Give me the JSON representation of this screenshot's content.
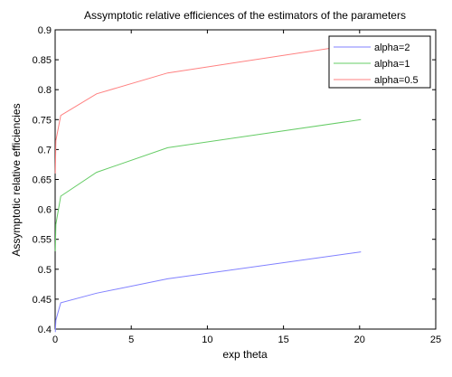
{
  "chart_data": {
    "type": "line",
    "title": "Assymptotic relative efficiences of the estimators of the parameters",
    "xlabel": "exp theta",
    "ylabel": "Assymptotic relative efficiencies",
    "xlim": [
      0,
      25
    ],
    "ylim": [
      0.4,
      0.9
    ],
    "xticks": [
      0,
      5,
      10,
      15,
      20,
      25
    ],
    "yticks": [
      0.4,
      0.45,
      0.5,
      0.55,
      0.6,
      0.65,
      0.7,
      0.75,
      0.8,
      0.85,
      0.9
    ],
    "xtick_labels": [
      "0",
      "5",
      "10",
      "15",
      "20",
      "25"
    ],
    "ytick_labels": [
      "0.4",
      "0.45",
      "0.5",
      "0.55",
      "0.6",
      "0.65",
      "0.7",
      "0.75",
      "0.8",
      "0.85",
      "0.9"
    ],
    "grid": false,
    "legend_position": "top-right",
    "series": [
      {
        "name": "alpha=2",
        "color": "#8080ff",
        "x": [
          0.01,
          0.05,
          0.37,
          2.72,
          7.39,
          20.09
        ],
        "y": [
          0.395,
          0.415,
          0.444,
          0.46,
          0.484,
          0.529
        ]
      },
      {
        "name": "alpha=1",
        "color": "#66cc66",
        "x": [
          0.01,
          0.05,
          0.37,
          2.72,
          7.39,
          20.09
        ],
        "y": [
          0.53,
          0.575,
          0.622,
          0.662,
          0.703,
          0.75
        ]
      },
      {
        "name": "alpha=0.5",
        "color": "#ff8080",
        "x": [
          0.01,
          0.05,
          0.37,
          2.72,
          7.39,
          20.09
        ],
        "y": [
          0.66,
          0.715,
          0.757,
          0.793,
          0.828,
          0.877
        ]
      }
    ]
  }
}
